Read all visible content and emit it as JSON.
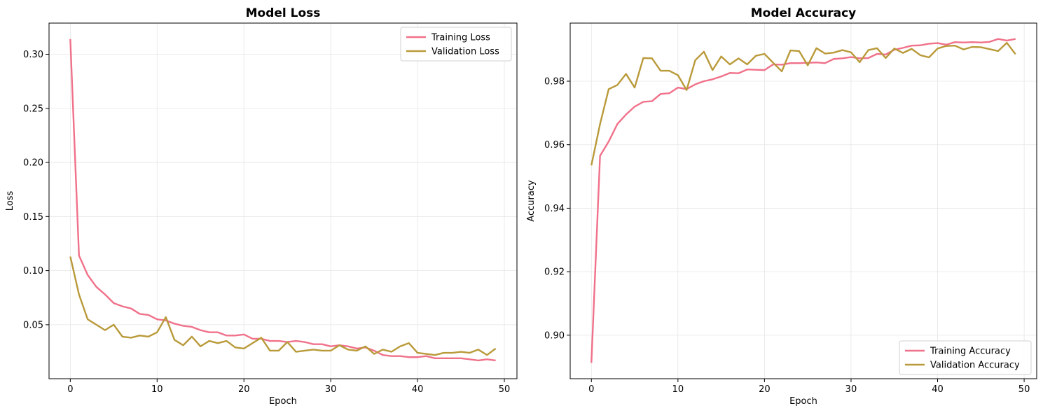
{
  "colors": {
    "training": "#f0718a",
    "validation": "#b99a3a",
    "grid": "#e6e6e6"
  },
  "chart_data": [
    {
      "type": "line",
      "title": "Model Loss",
      "xlabel": "Epoch",
      "ylabel": "Loss",
      "xlim": [
        -2.45,
        51.45
      ],
      "ylim": [
        0.0001,
        0.3288
      ],
      "xticks": [
        0,
        10,
        20,
        30,
        40,
        50
      ],
      "xtick_labels": [
        "0",
        "10",
        "20",
        "30",
        "40",
        "50"
      ],
      "yticks": [
        0.05,
        0.1,
        0.15,
        0.2,
        0.25,
        0.3
      ],
      "ytick_labels": [
        "0.05",
        "0.10",
        "0.15",
        "0.20",
        "0.25",
        "0.30"
      ],
      "grid": true,
      "legend": "upper-right",
      "x": [
        0,
        1,
        2,
        3,
        4,
        5,
        6,
        7,
        8,
        9,
        10,
        11,
        12,
        13,
        14,
        15,
        16,
        17,
        18,
        19,
        20,
        21,
        22,
        23,
        24,
        25,
        26,
        27,
        28,
        29,
        30,
        31,
        32,
        33,
        34,
        35,
        36,
        37,
        38,
        39,
        40,
        41,
        42,
        43,
        44,
        45,
        46,
        47,
        48,
        49
      ],
      "series": [
        {
          "name": "Training Loss",
          "color_key": "training",
          "values": [
            0.314,
            0.114,
            0.096,
            0.085,
            0.078,
            0.07,
            0.067,
            0.065,
            0.06,
            0.059,
            0.055,
            0.054,
            0.051,
            0.049,
            0.048,
            0.045,
            0.043,
            0.043,
            0.04,
            0.04,
            0.041,
            0.037,
            0.037,
            0.035,
            0.035,
            0.034,
            0.035,
            0.034,
            0.032,
            0.032,
            0.03,
            0.031,
            0.03,
            0.028,
            0.029,
            0.026,
            0.022,
            0.021,
            0.021,
            0.02,
            0.02,
            0.021,
            0.019,
            0.019,
            0.019,
            0.019,
            0.018,
            0.017,
            0.018,
            0.017
          ]
        },
        {
          "name": "Validation Loss",
          "color_key": "validation",
          "values": [
            0.113,
            0.078,
            0.055,
            0.05,
            0.045,
            0.05,
            0.039,
            0.038,
            0.04,
            0.039,
            0.043,
            0.057,
            0.036,
            0.031,
            0.039,
            0.03,
            0.035,
            0.033,
            0.035,
            0.029,
            0.028,
            0.033,
            0.038,
            0.026,
            0.026,
            0.034,
            0.025,
            0.026,
            0.027,
            0.026,
            0.026,
            0.031,
            0.027,
            0.026,
            0.03,
            0.023,
            0.027,
            0.025,
            0.03,
            0.033,
            0.024,
            0.023,
            0.022,
            0.024,
            0.024,
            0.025,
            0.024,
            0.027,
            0.022,
            0.028
          ]
        }
      ]
    },
    {
      "type": "line",
      "title": "Model Accuracy",
      "xlabel": "Epoch",
      "ylabel": "Accuracy",
      "xlim": [
        -2.45,
        51.45
      ],
      "ylim": [
        0.8863,
        0.9983
      ],
      "xticks": [
        0,
        10,
        20,
        30,
        40,
        50
      ],
      "xtick_labels": [
        "0",
        "10",
        "20",
        "30",
        "40",
        "50"
      ],
      "yticks": [
        0.9,
        0.92,
        0.94,
        0.96,
        0.98
      ],
      "ytick_labels": [
        "0.90",
        "0.92",
        "0.94",
        "0.96",
        "0.98"
      ],
      "grid": true,
      "legend": "lower-right",
      "x": [
        0,
        1,
        2,
        3,
        4,
        5,
        6,
        7,
        8,
        9,
        10,
        11,
        12,
        13,
        14,
        15,
        16,
        17,
        18,
        19,
        20,
        21,
        22,
        23,
        24,
        25,
        26,
        27,
        28,
        29,
        30,
        31,
        32,
        33,
        34,
        35,
        36,
        37,
        38,
        39,
        40,
        41,
        42,
        43,
        44,
        45,
        46,
        47,
        48,
        49
      ],
      "series": [
        {
          "name": "Training Accuracy",
          "color_key": "training",
          "values": [
            0.8913,
            0.9565,
            0.961,
            0.9665,
            0.9695,
            0.972,
            0.9735,
            0.9737,
            0.976,
            0.9762,
            0.978,
            0.9775,
            0.979,
            0.98,
            0.9806,
            0.9815,
            0.9826,
            0.9825,
            0.9837,
            0.9836,
            0.9835,
            0.9853,
            0.9852,
            0.9857,
            0.9857,
            0.9858,
            0.9859,
            0.9857,
            0.987,
            0.9872,
            0.9876,
            0.9872,
            0.9873,
            0.9886,
            0.9884,
            0.9899,
            0.9905,
            0.9912,
            0.9913,
            0.9918,
            0.992,
            0.9915,
            0.9923,
            0.9922,
            0.9923,
            0.9922,
            0.9924,
            0.9933,
            0.9928,
            0.9933
          ]
        },
        {
          "name": "Validation Accuracy",
          "color_key": "validation",
          "values": [
            0.9535,
            0.9665,
            0.9775,
            0.9788,
            0.9823,
            0.978,
            0.9873,
            0.9872,
            0.9833,
            0.9833,
            0.9819,
            0.9772,
            0.9866,
            0.9893,
            0.9835,
            0.9878,
            0.9853,
            0.9872,
            0.9853,
            0.988,
            0.9886,
            0.9858,
            0.9831,
            0.9897,
            0.9895,
            0.985,
            0.9904,
            0.9887,
            0.989,
            0.9898,
            0.9891,
            0.986,
            0.9898,
            0.9904,
            0.9873,
            0.9903,
            0.9889,
            0.9902,
            0.9882,
            0.9875,
            0.9903,
            0.9911,
            0.9912,
            0.99,
            0.9908,
            0.9907,
            0.9901,
            0.9895,
            0.9921,
            0.9885
          ]
        }
      ]
    }
  ]
}
